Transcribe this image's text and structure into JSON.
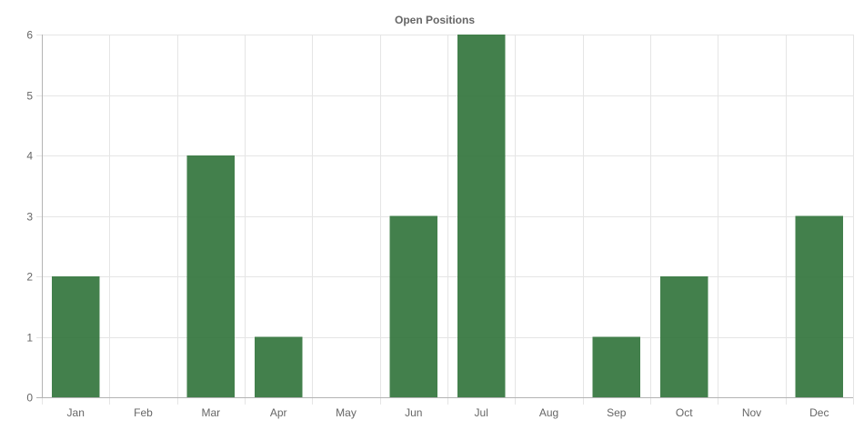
{
  "chart_data": {
    "type": "bar",
    "title": "Open Positions",
    "xlabel": "",
    "ylabel": "",
    "categories": [
      "Jan",
      "Feb",
      "Mar",
      "Apr",
      "May",
      "Jun",
      "Jul",
      "Aug",
      "Sep",
      "Oct",
      "Nov",
      "Dec"
    ],
    "series": [
      {
        "values": [
          2,
          0,
          4,
          1,
          0,
          3,
          6,
          0,
          1,
          2,
          0,
          3
        ]
      }
    ],
    "ylim": [
      0,
      6
    ],
    "yticks": [
      "0",
      "1",
      "2",
      "3",
      "4",
      "5",
      "6"
    ],
    "grid": true,
    "legend": "none",
    "colors": {
      "bar": "#2f7238",
      "grid": "#e5e5e5",
      "axis": "#b3b3b3",
      "text": "#666666"
    }
  }
}
